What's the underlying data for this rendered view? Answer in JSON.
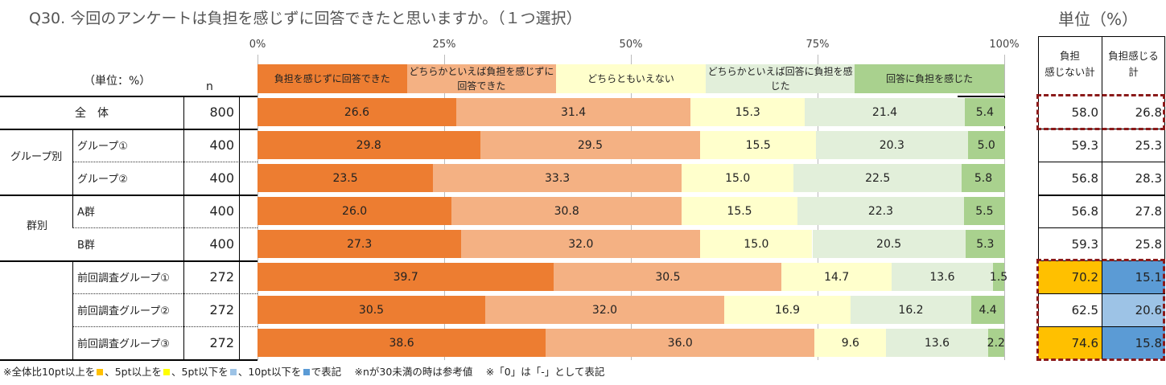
{
  "title": "Q30. 今回のアンケートは負担を感じずに回答できたと思いますか。（１つ選択）",
  "unit_right": "単位（%）",
  "unit_left": "（単位：%）",
  "n_header": "n",
  "right_headers": [
    "負担\n感じない計",
    "負担感じる\n計"
  ],
  "footnote": {
    "part1": "※全体比10pt以上を",
    "part2": "、5pt以上を",
    "part3": "、5pt以下を",
    "part4": "、10pt以下を",
    "part5": "で表記　 ※nが30未満の時は参考値　 ※「0」は「-」として表記"
  },
  "colors": {
    "over10": "#FFC000",
    "over5": "#FFFF00",
    "under5": "#9DC3E6",
    "under10": "#5B9BD5",
    "dash": "#8B1A1A"
  },
  "groups": [
    {
      "label": "グループ別"
    },
    {
      "label": "群別"
    }
  ],
  "chart_data": {
    "type": "bar",
    "orientation": "horizontal-stacked-100",
    "title": "Q30. 今回のアンケートは負担を感じずに回答できたと思いますか。（１つ選択）",
    "xlim": [
      0,
      100
    ],
    "x_ticks": [
      "0%",
      "25%",
      "50%",
      "75%",
      "100%"
    ],
    "grid": true,
    "legend_position": "top",
    "series": [
      {
        "name": "負担を感じずに回答できた",
        "color": "#ED7D31"
      },
      {
        "name": "どちらかといえば負担を感じずに回答できた",
        "color": "#F4B183"
      },
      {
        "name": "どちらともいえない",
        "color": "#FFFFCC"
      },
      {
        "name": "どちらかといえば回答に負担を感じた",
        "color": "#E2EFDA"
      },
      {
        "name": "回答に負担を感じた",
        "color": "#A9D18E"
      }
    ],
    "rows": [
      {
        "label": "全　体",
        "n": "800",
        "values": [
          26.6,
          31.4,
          15.3,
          21.4,
          5.4
        ],
        "no_burden": "58.0",
        "burden": "26.8"
      },
      {
        "label": "グループ①",
        "n": "400",
        "values": [
          29.8,
          29.5,
          15.5,
          20.3,
          5.0
        ],
        "no_burden": "59.3",
        "burden": "25.3"
      },
      {
        "label": "グループ②",
        "n": "400",
        "values": [
          23.5,
          33.3,
          15.0,
          22.5,
          5.8
        ],
        "no_burden": "56.8",
        "burden": "28.3"
      },
      {
        "label": "A群",
        "n": "400",
        "values": [
          26.0,
          30.8,
          15.5,
          22.3,
          5.5
        ],
        "no_burden": "56.8",
        "burden": "27.8"
      },
      {
        "label": "B群",
        "n": "400",
        "values": [
          27.3,
          32.0,
          15.0,
          20.5,
          5.3
        ],
        "no_burden": "59.3",
        "burden": "25.8"
      },
      {
        "label": "前回調査グループ①",
        "n": "272",
        "values": [
          39.7,
          30.5,
          14.7,
          13.6,
          1.5
        ],
        "no_burden": "70.2",
        "burden": "15.1",
        "hl_no": "over10",
        "hl_b": "under10"
      },
      {
        "label": "前回調査グループ②",
        "n": "272",
        "values": [
          30.5,
          32.0,
          16.9,
          16.2,
          4.4
        ],
        "no_burden": "62.5",
        "burden": "20.6",
        "hl_b": "under5"
      },
      {
        "label": "前回調査グループ③",
        "n": "272",
        "values": [
          38.6,
          36.0,
          9.6,
          13.6,
          2.2
        ],
        "no_burden": "74.6",
        "burden": "15.8",
        "hl_no": "over10",
        "hl_b": "under10"
      }
    ]
  }
}
